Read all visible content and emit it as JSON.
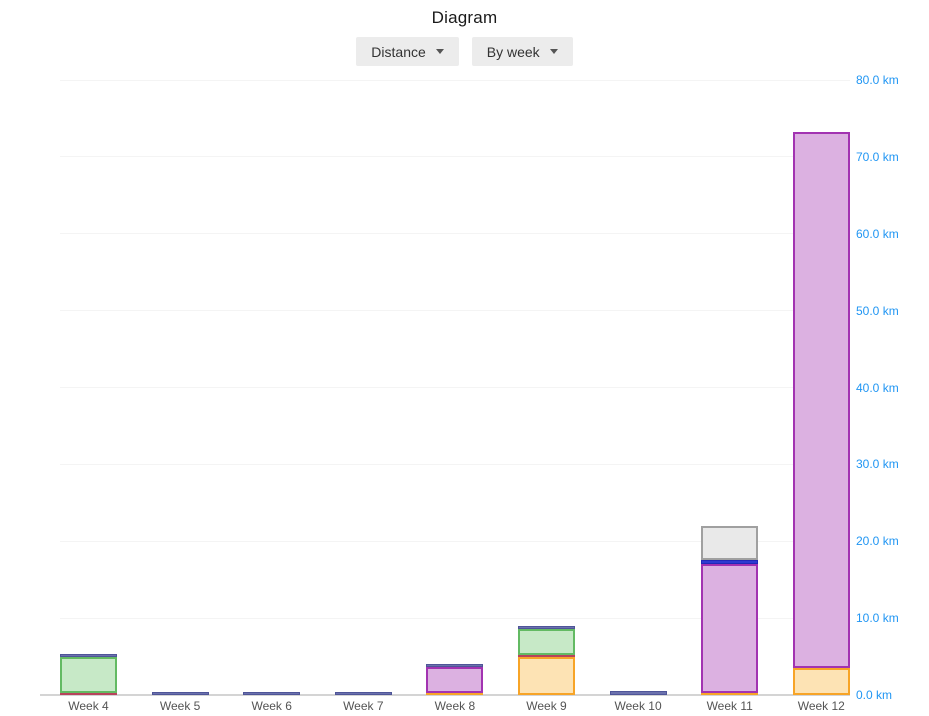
{
  "header": {
    "title": "Diagram",
    "metric_dropdown": {
      "label": "Distance",
      "icon": "chevron-down-icon"
    },
    "grouping_dropdown": {
      "label": "By week",
      "icon": "chevron-down-icon"
    }
  },
  "chart_data": {
    "type": "bar",
    "stacked": true,
    "title": "Diagram",
    "categories": [
      "Week 4",
      "Week 5",
      "Week 6",
      "Week 7",
      "Week 8",
      "Week 9",
      "Week 10",
      "Week 11",
      "Week 12"
    ],
    "unit": "km",
    "xlabel": "",
    "ylabel": "Distance (km)",
    "ylim": [
      0,
      80
    ],
    "ytick_step": 10,
    "ytick_labels": [
      "0.0 km",
      "10.0 km",
      "20.0 km",
      "30.0 km",
      "40.0 km",
      "50.0 km",
      "60.0 km",
      "70.0 km",
      "80.0 km"
    ],
    "grid": true,
    "legend_position": "none",
    "axis_tick_color": "#2196f3",
    "x_tick_color": "#545454",
    "gridline_color": "#f4f4f4",
    "baseline_color": "#d4d4d4",
    "series": [
      {
        "name": "orange",
        "fill": "#fde3b4",
        "border": "#f7a427",
        "values": [
          0,
          0,
          0,
          0,
          0.3,
          4.9,
          0,
          0.3,
          3.5
        ]
      },
      {
        "name": "red",
        "fill": "#cc5f72",
        "border": "#b8435c",
        "values": [
          0.3,
          0,
          0,
          0,
          0,
          0.3,
          0,
          0,
          0
        ]
      },
      {
        "name": "purple",
        "fill": "#dcb1e1",
        "border": "#a233b1",
        "values": [
          0,
          0,
          0,
          0,
          3.4,
          0,
          0,
          16.8,
          69.7
        ]
      },
      {
        "name": "green",
        "fill": "#c7e9c7",
        "border": "#63ba63",
        "values": [
          4.6,
          0,
          0,
          0,
          0,
          3.4,
          0,
          0,
          0
        ]
      },
      {
        "name": "indigo",
        "fill": "#6b71ad",
        "border": "#4f5598",
        "values": [
          0.4,
          0.4,
          0.4,
          0.4,
          0.4,
          0.4,
          0.5,
          0,
          0
        ]
      },
      {
        "name": "blue",
        "fill": "#2d3bd0",
        "border": "#2028b8",
        "values": [
          0,
          0,
          0,
          0,
          0,
          0,
          0,
          0.5,
          0
        ]
      },
      {
        "name": "gray",
        "fill": "#e9e9e9",
        "border": "#a0a0a0",
        "values": [
          0,
          0,
          0,
          0,
          0,
          0,
          0,
          4.4,
          0
        ]
      }
    ],
    "totals": [
      5.3,
      0.4,
      0.4,
      0.4,
      4.1,
      9.0,
      0.5,
      22.0,
      73.2
    ]
  }
}
